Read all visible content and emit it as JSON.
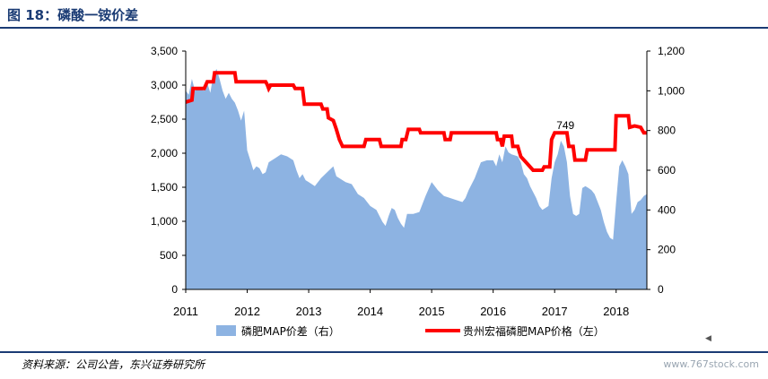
{
  "figure": {
    "title": "图 18：磷酸一铵价差",
    "source": "资料来源：公司公告，东兴证券研究所",
    "watermark": "www.767stock.com"
  },
  "colors": {
    "bars": "#8db3e2",
    "line": "#ff0000",
    "rule": "#1a3b74"
  },
  "chart_data": {
    "type": "bar+line",
    "x_ticks": [
      "2011",
      "2012",
      "2013",
      "2014",
      "2015",
      "2016",
      "2017",
      "2018"
    ],
    "x_range": [
      2011.0,
      2018.5
    ],
    "y_left": {
      "ticks": [
        "0",
        "500",
        "1,000",
        "1,500",
        "2,000",
        "2,500",
        "3,000",
        "3,500"
      ],
      "range": [
        0,
        3500
      ]
    },
    "y_right": {
      "ticks": [
        "0",
        "200",
        "400",
        "600",
        "800",
        "1,000",
        "1,200"
      ],
      "range": [
        0,
        1200
      ]
    },
    "annotation": {
      "text": "749",
      "x": 2017.0,
      "y_left": 2250
    },
    "series": [
      {
        "name": "磷肥MAP价差（右）",
        "type": "area",
        "axis": "right",
        "points": [
          [
            2011.0,
            1000
          ],
          [
            2011.05,
            980
          ],
          [
            2011.1,
            1060
          ],
          [
            2011.15,
            1000
          ],
          [
            2011.2,
            1010
          ],
          [
            2011.3,
            1000
          ],
          [
            2011.35,
            1040
          ],
          [
            2011.4,
            990
          ],
          [
            2011.45,
            1080
          ],
          [
            2011.5,
            1110
          ],
          [
            2011.55,
            1060
          ],
          [
            2011.6,
            1000
          ],
          [
            2011.65,
            960
          ],
          [
            2011.7,
            990
          ],
          [
            2011.75,
            960
          ],
          [
            2011.8,
            940
          ],
          [
            2011.85,
            900
          ],
          [
            2011.9,
            850
          ],
          [
            2011.95,
            900
          ],
          [
            2012.0,
            700
          ],
          [
            2012.05,
            650
          ],
          [
            2012.1,
            600
          ],
          [
            2012.15,
            620
          ],
          [
            2012.2,
            610
          ],
          [
            2012.25,
            580
          ],
          [
            2012.3,
            590
          ],
          [
            2012.35,
            640
          ],
          [
            2012.45,
            660
          ],
          [
            2012.55,
            680
          ],
          [
            2012.65,
            670
          ],
          [
            2012.75,
            650
          ],
          [
            2012.8,
            600
          ],
          [
            2012.85,
            560
          ],
          [
            2012.9,
            580
          ],
          [
            2012.95,
            550
          ],
          [
            2013.0,
            540
          ],
          [
            2013.1,
            520
          ],
          [
            2013.2,
            560
          ],
          [
            2013.3,
            590
          ],
          [
            2013.4,
            620
          ],
          [
            2013.45,
            570
          ],
          [
            2013.5,
            560
          ],
          [
            2013.6,
            540
          ],
          [
            2013.7,
            530
          ],
          [
            2013.8,
            480
          ],
          [
            2013.9,
            460
          ],
          [
            2014.0,
            420
          ],
          [
            2014.1,
            400
          ],
          [
            2014.2,
            340
          ],
          [
            2014.25,
            320
          ],
          [
            2014.3,
            370
          ],
          [
            2014.35,
            410
          ],
          [
            2014.4,
            400
          ],
          [
            2014.45,
            360
          ],
          [
            2014.5,
            330
          ],
          [
            2014.55,
            310
          ],
          [
            2014.6,
            380
          ],
          [
            2014.7,
            380
          ],
          [
            2014.8,
            390
          ],
          [
            2014.9,
            470
          ],
          [
            2015.0,
            540
          ],
          [
            2015.05,
            520
          ],
          [
            2015.1,
            500
          ],
          [
            2015.2,
            470
          ],
          [
            2015.3,
            460
          ],
          [
            2015.4,
            450
          ],
          [
            2015.5,
            440
          ],
          [
            2015.55,
            460
          ],
          [
            2015.6,
            500
          ],
          [
            2015.7,
            560
          ],
          [
            2015.75,
            600
          ],
          [
            2015.8,
            640
          ],
          [
            2015.9,
            650
          ],
          [
            2016.0,
            650
          ],
          [
            2016.05,
            620
          ],
          [
            2016.1,
            680
          ],
          [
            2016.15,
            640
          ],
          [
            2016.2,
            720
          ],
          [
            2016.25,
            690
          ],
          [
            2016.3,
            680
          ],
          [
            2016.4,
            670
          ],
          [
            2016.45,
            640
          ],
          [
            2016.5,
            580
          ],
          [
            2016.55,
            560
          ],
          [
            2016.6,
            520
          ],
          [
            2016.65,
            490
          ],
          [
            2016.7,
            460
          ],
          [
            2016.75,
            420
          ],
          [
            2016.8,
            400
          ],
          [
            2016.85,
            410
          ],
          [
            2016.9,
            420
          ],
          [
            2016.95,
            560
          ],
          [
            2017.0,
            640
          ],
          [
            2017.05,
            680
          ],
          [
            2017.1,
            749
          ],
          [
            2017.15,
            720
          ],
          [
            2017.2,
            640
          ],
          [
            2017.25,
            470
          ],
          [
            2017.3,
            380
          ],
          [
            2017.35,
            370
          ],
          [
            2017.4,
            380
          ],
          [
            2017.45,
            510
          ],
          [
            2017.5,
            520
          ],
          [
            2017.55,
            510
          ],
          [
            2017.6,
            500
          ],
          [
            2017.65,
            480
          ],
          [
            2017.7,
            440
          ],
          [
            2017.75,
            400
          ],
          [
            2017.8,
            340
          ],
          [
            2017.85,
            290
          ],
          [
            2017.9,
            260
          ],
          [
            2017.95,
            250
          ],
          [
            2018.0,
            440
          ],
          [
            2018.05,
            620
          ],
          [
            2018.1,
            650
          ],
          [
            2018.15,
            620
          ],
          [
            2018.2,
            580
          ],
          [
            2018.25,
            380
          ],
          [
            2018.3,
            400
          ],
          [
            2018.35,
            440
          ],
          [
            2018.4,
            450
          ],
          [
            2018.45,
            470
          ],
          [
            2018.5,
            480
          ]
        ]
      },
      {
        "name": "贵州宏福磷肥MAP价格（左）",
        "type": "step-line",
        "axis": "left",
        "points": [
          [
            2011.0,
            2750
          ],
          [
            2011.1,
            2780
          ],
          [
            2011.12,
            2950
          ],
          [
            2011.3,
            2950
          ],
          [
            2011.35,
            3050
          ],
          [
            2011.45,
            3050
          ],
          [
            2011.47,
            3180
          ],
          [
            2011.8,
            3180
          ],
          [
            2011.82,
            3050
          ],
          [
            2012.3,
            3050
          ],
          [
            2012.33,
            3000
          ],
          [
            2012.35,
            2950
          ],
          [
            2012.38,
            3000
          ],
          [
            2012.75,
            3000
          ],
          [
            2012.78,
            2950
          ],
          [
            2012.9,
            2950
          ],
          [
            2012.93,
            2720
          ],
          [
            2013.2,
            2720
          ],
          [
            2013.23,
            2650
          ],
          [
            2013.3,
            2650
          ],
          [
            2013.32,
            2520
          ],
          [
            2013.4,
            2480
          ],
          [
            2013.45,
            2350
          ],
          [
            2013.5,
            2200
          ],
          [
            2013.55,
            2100
          ],
          [
            2013.9,
            2100
          ],
          [
            2013.93,
            2200
          ],
          [
            2014.15,
            2200
          ],
          [
            2014.18,
            2100
          ],
          [
            2014.5,
            2100
          ],
          [
            2014.52,
            2200
          ],
          [
            2014.58,
            2200
          ],
          [
            2014.62,
            2350
          ],
          [
            2014.8,
            2350
          ],
          [
            2014.82,
            2300
          ],
          [
            2015.2,
            2300
          ],
          [
            2015.22,
            2200
          ],
          [
            2015.3,
            2200
          ],
          [
            2015.32,
            2300
          ],
          [
            2016.05,
            2300
          ],
          [
            2016.07,
            2200
          ],
          [
            2016.12,
            2200
          ],
          [
            2016.15,
            2100
          ],
          [
            2016.18,
            2250
          ],
          [
            2016.3,
            2250
          ],
          [
            2016.32,
            2100
          ],
          [
            2016.4,
            2100
          ],
          [
            2016.45,
            1950
          ],
          [
            2016.55,
            1850
          ],
          [
            2016.65,
            1750
          ],
          [
            2016.8,
            1750
          ],
          [
            2016.83,
            1800
          ],
          [
            2016.92,
            1800
          ],
          [
            2016.95,
            2200
          ],
          [
            2017.0,
            2300
          ],
          [
            2017.2,
            2300
          ],
          [
            2017.23,
            2100
          ],
          [
            2017.3,
            2100
          ],
          [
            2017.33,
            1900
          ],
          [
            2017.5,
            1900
          ],
          [
            2017.53,
            2050
          ],
          [
            2017.98,
            2050
          ],
          [
            2018.0,
            2550
          ],
          [
            2018.2,
            2550
          ],
          [
            2018.22,
            2380
          ],
          [
            2018.3,
            2400
          ],
          [
            2018.4,
            2380
          ],
          [
            2018.45,
            2300
          ],
          [
            2018.5,
            2300
          ]
        ]
      }
    ]
  },
  "legend": {
    "area_label": "磷肥MAP价差（右）",
    "line_label": "贵州宏福磷肥MAP价格（左）"
  }
}
